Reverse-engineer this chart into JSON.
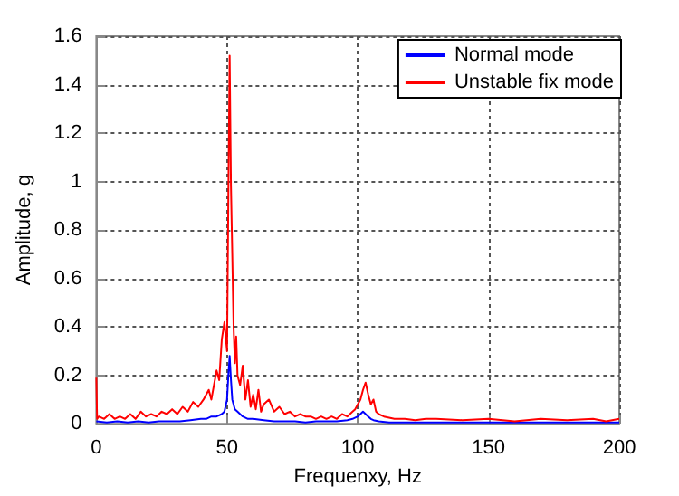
{
  "chart_data": {
    "type": "line",
    "xlabel": "Frequenxy, Hz",
    "ylabel": "Amplitude, g",
    "xlim": [
      0,
      200
    ],
    "xticks": [
      0,
      50,
      100,
      150,
      200
    ],
    "ylim": [
      0,
      1.6
    ],
    "yticks": [
      0,
      0.2,
      0.4,
      0.6,
      0.8,
      1,
      1.2,
      1.4,
      1.6
    ],
    "grid": true,
    "legend": "top right",
    "marker": "none",
    "line_style": "solid",
    "series": [
      {
        "name": "Normal mode",
        "color": "#0000ff",
        "x": [
          0,
          4,
          8,
          12,
          16,
          20,
          24,
          28,
          32,
          36,
          40,
          42,
          44,
          46,
          48,
          49,
          50,
          50.5,
          51,
          51.5,
          52,
          53,
          54,
          55,
          56,
          58,
          60,
          64,
          68,
          72,
          76,
          80,
          84,
          88,
          92,
          96,
          98,
          100,
          101,
          102,
          103,
          104,
          105,
          106,
          108,
          112,
          120,
          130,
          140,
          150,
          160,
          170,
          180,
          190,
          200
        ],
        "values": [
          0.01,
          0.005,
          0.01,
          0.005,
          0.01,
          0.005,
          0.01,
          0.01,
          0.01,
          0.015,
          0.02,
          0.02,
          0.03,
          0.03,
          0.04,
          0.05,
          0.1,
          0.2,
          0.28,
          0.18,
          0.1,
          0.06,
          0.05,
          0.04,
          0.03,
          0.02,
          0.02,
          0.015,
          0.01,
          0.01,
          0.01,
          0.005,
          0.01,
          0.01,
          0.01,
          0.015,
          0.02,
          0.03,
          0.04,
          0.05,
          0.04,
          0.03,
          0.02,
          0.015,
          0.01,
          0.005,
          0.005,
          0.005,
          0.005,
          0.005,
          0.005,
          0.005,
          0.005,
          0.005,
          0.005
        ]
      },
      {
        "name": "Unstable fix mode",
        "color": "#ff0000",
        "x": [
          0,
          0.3,
          1,
          3,
          5,
          7,
          9,
          11,
          13,
          15,
          17,
          19,
          21,
          23,
          25,
          27,
          29,
          31,
          33,
          35,
          37,
          39,
          41,
          43,
          44,
          45,
          46,
          47,
          48,
          49,
          50,
          50.5,
          51,
          51.5,
          52,
          52.5,
          53,
          53.5,
          54,
          55,
          56,
          57,
          58,
          59,
          60,
          61,
          62,
          63,
          64,
          66,
          68,
          70,
          72,
          74,
          76,
          78,
          80,
          82,
          84,
          86,
          88,
          90,
          92,
          94,
          96,
          98,
          99,
          100,
          101,
          102,
          103,
          104,
          105,
          106,
          107,
          108,
          110,
          114,
          118,
          122,
          126,
          130,
          140,
          150,
          160,
          170,
          180,
          190,
          195,
          200
        ],
        "values": [
          0.19,
          0.02,
          0.03,
          0.02,
          0.04,
          0.02,
          0.03,
          0.02,
          0.04,
          0.02,
          0.05,
          0.03,
          0.04,
          0.03,
          0.05,
          0.04,
          0.06,
          0.04,
          0.07,
          0.05,
          0.09,
          0.07,
          0.1,
          0.14,
          0.1,
          0.16,
          0.22,
          0.18,
          0.35,
          0.42,
          0.3,
          0.94,
          1.52,
          0.98,
          0.7,
          0.4,
          0.25,
          0.36,
          0.2,
          0.16,
          0.24,
          0.1,
          0.18,
          0.07,
          0.12,
          0.06,
          0.14,
          0.05,
          0.08,
          0.1,
          0.05,
          0.07,
          0.04,
          0.05,
          0.03,
          0.04,
          0.03,
          0.03,
          0.02,
          0.03,
          0.02,
          0.03,
          0.02,
          0.04,
          0.03,
          0.05,
          0.06,
          0.08,
          0.1,
          0.14,
          0.17,
          0.12,
          0.08,
          0.1,
          0.05,
          0.04,
          0.03,
          0.02,
          0.02,
          0.015,
          0.02,
          0.02,
          0.015,
          0.02,
          0.01,
          0.02,
          0.015,
          0.02,
          0.01,
          0.02
        ]
      }
    ]
  }
}
